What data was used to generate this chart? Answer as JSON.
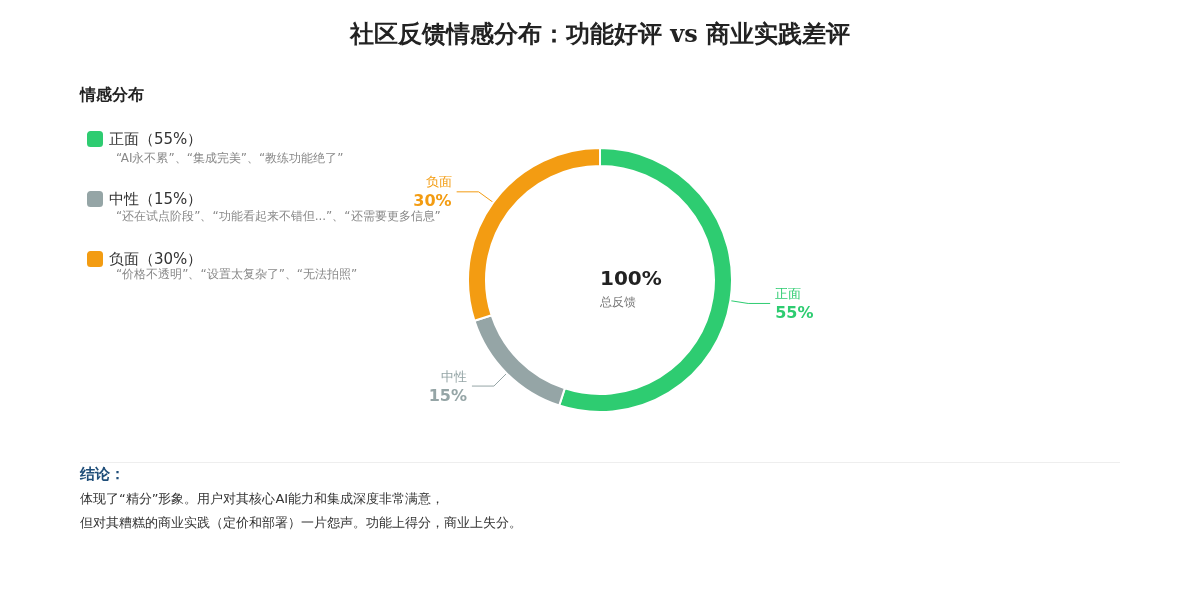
{
  "chart_data": {
    "type": "donut",
    "title": "社区反馈情感分布：功能好评 vs 商业实践差评",
    "legend_title": "情感分布",
    "categories": [
      "正面",
      "中性",
      "负面"
    ],
    "values": [
      55,
      15,
      30
    ],
    "value_labels": [
      "55%",
      "15%",
      "30%"
    ],
    "colors": [
      "#2ecc71",
      "#95a5a6",
      "#f39c12"
    ],
    "legend": "top left",
    "annotations": [
      "（55%）",
      "（15%）",
      "（30%）",
      "“AI永不累”、“集成完美”、“教练功能绝了”",
      "“还在试点阶段”、“功能看起来不错但...”、“还需要更多信息”",
      "“价格不透明”、“设置太复杂了”、“无法拍照”",
      "100%",
      "总反馈",
      "结论：",
      "体现了“精分”形象。用户对其核心AI能力和集成深度非常满意，",
      "但对其糟糕的商业实践（定价和部署）一片怨声。功能上得分，商业上失分。"
    ]
  }
}
